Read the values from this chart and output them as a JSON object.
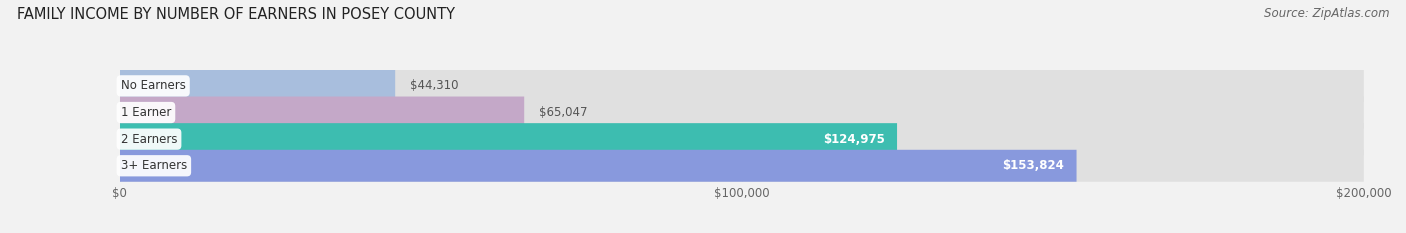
{
  "title": "FAMILY INCOME BY NUMBER OF EARNERS IN POSEY COUNTY",
  "source": "Source: ZipAtlas.com",
  "categories": [
    "No Earners",
    "1 Earner",
    "2 Earners",
    "3+ Earners"
  ],
  "values": [
    44310,
    65047,
    124975,
    153824
  ],
  "bar_colors": [
    "#a8bedd",
    "#c4a8c8",
    "#3dbdb0",
    "#8899dd"
  ],
  "bar_labels": [
    "$44,310",
    "$65,047",
    "$124,975",
    "$153,824"
  ],
  "label_colors": [
    "#555555",
    "#555555",
    "#ffffff",
    "#ffffff"
  ],
  "xlim": [
    0,
    200000
  ],
  "xticks": [
    0,
    100000,
    200000
  ],
  "xtick_labels": [
    "$0",
    "$100,000",
    "$200,000"
  ],
  "bg_color": "#f2f2f2",
  "bar_bg_color": "#e0e0e0",
  "title_fontsize": 10.5,
  "source_fontsize": 8.5,
  "bar_height": 0.6,
  "figsize": [
    14.06,
    2.33
  ],
  "dpi": 100
}
